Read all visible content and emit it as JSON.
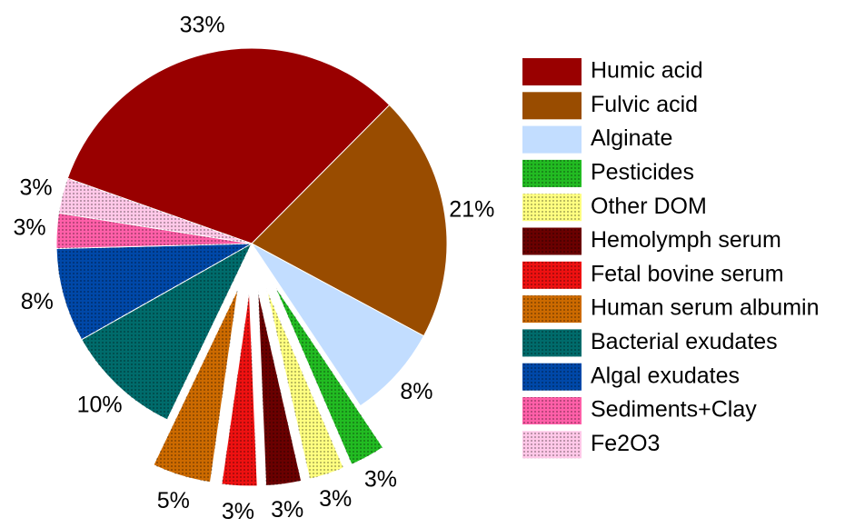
{
  "chart_data": {
    "type": "pie",
    "categories": [
      "Humic acid",
      "Fulvic acid",
      "Alginate",
      "Pesticides",
      "Other DOM",
      "Hemolymph serum",
      "Fetal bovine serum",
      "Human serum albumin",
      "Bacterial exudates",
      "Algal exudates",
      "Sediments+Clay",
      "Fe2O3"
    ],
    "values": [
      33,
      21,
      8,
      3,
      3,
      3,
      3,
      5,
      10,
      8,
      3,
      3
    ],
    "value_labels": [
      "33%",
      "21%",
      "8%",
      "3%",
      "3%",
      "3%",
      "3%",
      "5%",
      "10%",
      "8%",
      "3%",
      "3%"
    ],
    "colors": [
      "#990000",
      "#994c00",
      "#c2ddff",
      "#22bb22",
      "#ffff80",
      "#6a0000",
      "#ee1111",
      "#cc6a00",
      "#006b6b",
      "#0048a8",
      "#ff5fa8",
      "#ffc8e8"
    ],
    "exploded": [
      false,
      false,
      false,
      true,
      true,
      true,
      true,
      true,
      false,
      false,
      false,
      false
    ],
    "legend": "right"
  }
}
